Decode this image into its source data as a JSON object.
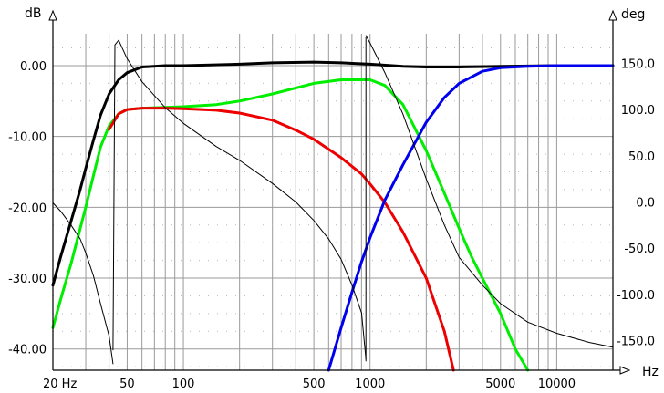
{
  "chart_data": {
    "type": "line",
    "title": "",
    "xlabel": "Hz",
    "ylabel": "dB",
    "y2label": "deg",
    "x_scale": "log",
    "xlim": [
      20,
      20000
    ],
    "ylim": [
      -43,
      4.5
    ],
    "y2lim": [
      -182,
      182
    ],
    "grid": true,
    "x_ticks": [
      {
        "value": 20,
        "label": "20 Hz"
      },
      {
        "value": 50,
        "label": "50"
      },
      {
        "value": 100,
        "label": "100"
      },
      {
        "value": 500,
        "label": "500"
      },
      {
        "value": 1000,
        "label": "1000"
      },
      {
        "value": 5000,
        "label": "5000"
      },
      {
        "value": 10000,
        "label": "10000"
      }
    ],
    "x_end_label": "Hz",
    "y_ticks": [
      {
        "value": 0,
        "label": "0.00"
      },
      {
        "value": -10,
        "label": "-10.00"
      },
      {
        "value": -20,
        "label": "-20.00"
      },
      {
        "value": -30,
        "label": "-30.00"
      },
      {
        "value": -40,
        "label": "-40.00"
      }
    ],
    "y2_ticks": [
      {
        "value": 150,
        "label": "150.0"
      },
      {
        "value": 100,
        "label": "100.0"
      },
      {
        "value": 50,
        "label": "50.0"
      },
      {
        "value": 0,
        "label": "0.0"
      },
      {
        "value": -50,
        "label": "-50.0"
      },
      {
        "value": -100,
        "label": "-100.0"
      },
      {
        "value": -150,
        "label": "-150.0"
      }
    ],
    "series": [
      {
        "axis": "left",
        "color": "#000000",
        "width": 3,
        "x": [
          20,
          22,
          25,
          28,
          30,
          33,
          36,
          40,
          45,
          50,
          60,
          80,
          100,
          200,
          300,
          500,
          700,
          1000,
          1500,
          2000,
          3000,
          5000,
          10000,
          20000
        ],
        "y": [
          -31,
          -27,
          -22,
          -17.5,
          -14.5,
          -10.5,
          -7,
          -4,
          -2,
          -1,
          -0.2,
          0,
          0,
          0.2,
          0.4,
          0.5,
          0.4,
          0.2,
          -0.1,
          -0.2,
          -0.2,
          -0.1,
          0,
          0
        ]
      },
      {
        "axis": "left",
        "color": "#00ee00",
        "width": 3,
        "x": [
          20,
          22,
          25,
          28,
          30,
          33,
          36,
          40,
          45,
          50,
          60,
          80,
          100,
          150,
          200,
          300,
          500,
          700,
          1000,
          1200,
          1500,
          2000,
          2500,
          3000,
          3500,
          4000,
          5000,
          6000,
          7000
        ],
        "y": [
          -37,
          -33,
          -28,
          -23,
          -20,
          -15.5,
          -11.5,
          -8.5,
          -6.8,
          -6.2,
          -6,
          -5.9,
          -5.8,
          -5.5,
          -5,
          -4,
          -2.5,
          -2,
          -2,
          -2.8,
          -5.5,
          -12,
          -18,
          -23,
          -27,
          -30,
          -35,
          -40,
          -43
        ]
      },
      {
        "axis": "left",
        "color": "#ee0000",
        "width": 3,
        "x": [
          40,
          45,
          50,
          60,
          80,
          100,
          150,
          200,
          300,
          400,
          500,
          700,
          900,
          1000,
          1200,
          1500,
          2000,
          2500,
          2800
        ],
        "y": [
          -9,
          -6.8,
          -6.2,
          -6,
          -6,
          -6.1,
          -6.3,
          -6.7,
          -7.7,
          -9.1,
          -10.4,
          -13,
          -15.3,
          -16.7,
          -19.3,
          -23.5,
          -30,
          -37.5,
          -43
        ]
      },
      {
        "axis": "left",
        "color": "#0000ee",
        "width": 3,
        "x": [
          600,
          700,
          800,
          900,
          1000,
          1200,
          1500,
          2000,
          2500,
          3000,
          4000,
          5000,
          7000,
          10000,
          20000
        ],
        "y": [
          -43,
          -37,
          -32,
          -27.7,
          -24.3,
          -19,
          -14,
          -8,
          -4.5,
          -2.5,
          -0.8,
          -0.3,
          -0.1,
          0,
          0
        ]
      },
      {
        "axis": "right",
        "color": "#000000",
        "width": 1,
        "x": [
          20,
          22,
          25,
          28,
          30,
          33,
          36,
          40,
          42
        ],
        "y": [
          -1,
          -10,
          -25,
          -40,
          -55,
          -80,
          -110,
          -145,
          -175
        ]
      },
      {
        "axis": "right",
        "color": "#000000",
        "width": 1,
        "x": [
          42,
          43,
          45,
          50,
          60,
          80,
          100,
          150,
          200,
          300,
          400,
          500,
          600,
          700,
          800,
          900,
          950
        ],
        "y": [
          -160,
          170,
          175,
          155,
          130,
          102,
          85,
          60,
          45,
          20,
          0,
          -20,
          -40,
          -62,
          -90,
          -120,
          -170
        ]
      },
      {
        "axis": "right",
        "color": "#000000",
        "width": 1,
        "x": [
          950,
          1000,
          1200,
          1500,
          2000,
          2500,
          3000,
          4000,
          5000,
          7000,
          10000,
          15000,
          20000
        ],
        "y": [
          180,
          172,
          140,
          95,
          25,
          -25,
          -60,
          -90,
          -110,
          -130,
          -142,
          -152,
          -157
        ]
      },
      {
        "axis": "right",
        "color": "#000000",
        "width": 1,
        "x": [
          950,
          950
        ],
        "y": [
          -172,
          178
        ]
      }
    ]
  }
}
